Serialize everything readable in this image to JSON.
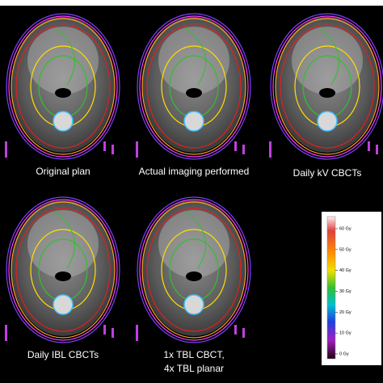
{
  "panels": [
    {
      "lines": [
        "Original plan"
      ]
    },
    {
      "lines": [
        "Actual imaging performed"
      ]
    },
    {
      "lines": [
        "Daily kV CBCTs"
      ]
    },
    {
      "lines": [
        "Daily IBL CBCTs"
      ]
    },
    {
      "lines": [
        "1x TBL CBCT,",
        "4x TBL planar"
      ]
    }
  ],
  "colorbar": {
    "labels": [
      "60 Gy",
      "50 Gy",
      "40 Gy",
      "30 Gy",
      "20 Gy",
      "10 Gy",
      "0 Gy"
    ]
  }
}
